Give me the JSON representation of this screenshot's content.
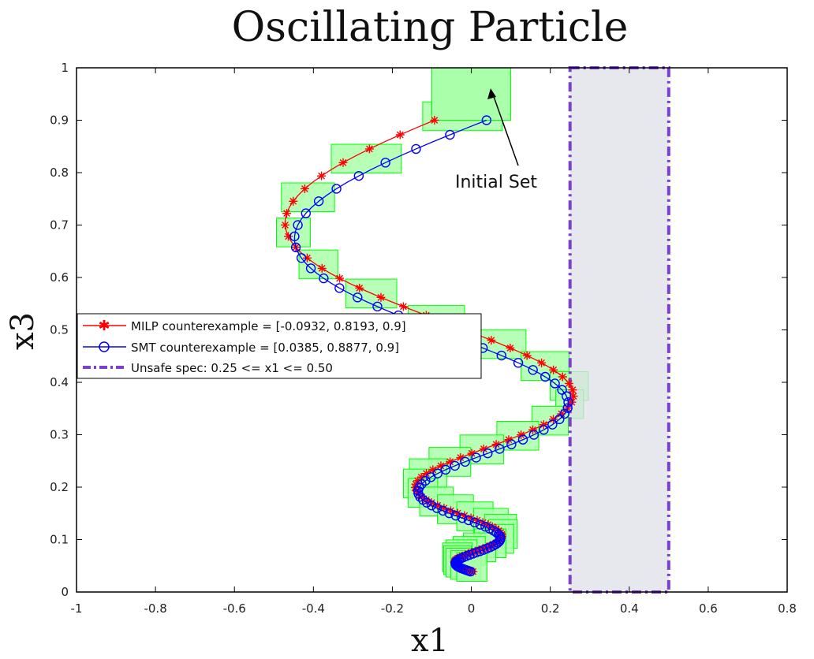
{
  "chart_data": {
    "type": "line",
    "title": "Oscillating Particle",
    "xlabel": "x1",
    "ylabel": "x3",
    "xlim": [
      -1,
      0.8
    ],
    "ylim": [
      0,
      1
    ],
    "xticks": [
      "-1",
      "-0.8",
      "-0.6",
      "-0.4",
      "-0.2",
      "0",
      "0.2",
      "0.4",
      "0.6",
      "0.8"
    ],
    "yticks": [
      "0",
      "0.1",
      "0.2",
      "0.3",
      "0.4",
      "0.5",
      "0.6",
      "0.7",
      "0.8",
      "0.9",
      "1"
    ],
    "grid": false,
    "legend_position": "left",
    "series": [
      {
        "name": "MILP counterexample = [-0.0932, 0.8193, 0.9]",
        "color": "#ff0000",
        "marker": "star",
        "x0": -0.0932,
        "y0": 0.9,
        "amp": 0.6,
        "omega": 0.0785,
        "decay": 0.015,
        "ydecay": 0.0157,
        "steps": 200
      },
      {
        "name": "SMT counterexample = [0.0385, 0.8877, 0.9]",
        "color": "#0000ff",
        "marker": "circle",
        "x0": 0.0385,
        "y0": 0.9,
        "amp": 0.6,
        "omega": 0.0785,
        "decay": 0.015,
        "ydecay": 0.0157,
        "steps": 200
      }
    ],
    "reach_sets": {
      "color": "#00ff00",
      "fill": "#aaffaa"
    },
    "initial_set": {
      "x": [
        -0.1,
        0.1
      ],
      "y": [
        0.9,
        1.0
      ]
    },
    "unsafe_region": {
      "label": "Unsafe spec: 0.25 <= x1 <= 0.50",
      "x": [
        0.25,
        0.5
      ],
      "y": [
        0,
        1
      ],
      "edge_color": "#7b3fd1",
      "fill": "#dde0e8"
    },
    "annotation": {
      "text": "Initial Set",
      "arrow_to": [
        0.05,
        0.96
      ]
    }
  }
}
